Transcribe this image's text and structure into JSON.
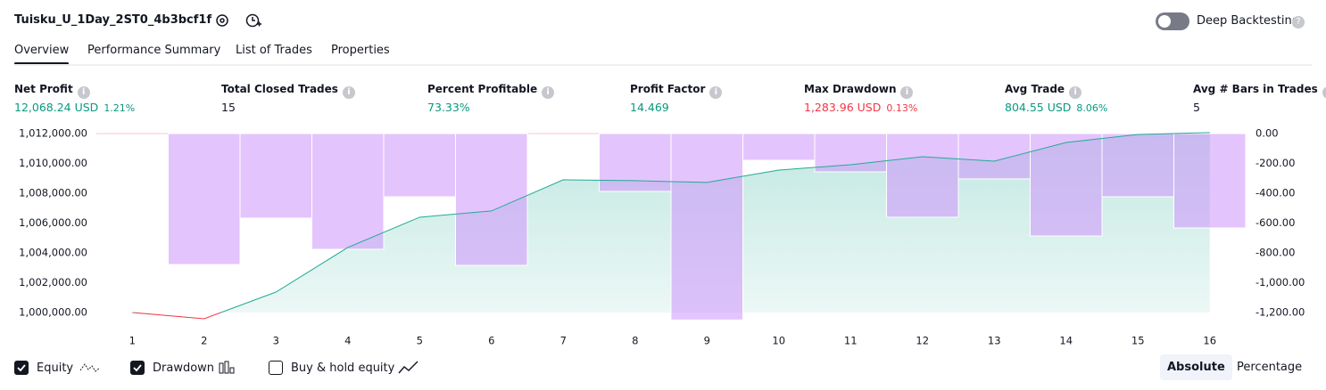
{
  "header": {
    "title": "Tuisku_U_1Day_2ST0_4b3bcf1f",
    "deep_backtesting": {
      "label": "Deep Backtesting",
      "enabled": false
    }
  },
  "tabs": {
    "items": [
      "Overview",
      "Performance Summary",
      "List of Trades",
      "Properties"
    ],
    "active": 0
  },
  "stats": [
    {
      "label": "Net Profit",
      "value": "12,068.24 USD",
      "percent": "1.21%",
      "tone": "positive"
    },
    {
      "label": "Total Closed Trades",
      "value": "15",
      "tone": "neutral"
    },
    {
      "label": "Percent Profitable",
      "value": "73.33%",
      "tone": "positive"
    },
    {
      "label": "Profit Factor",
      "value": "14.469",
      "tone": "positive"
    },
    {
      "label": "Max Drawdown",
      "value": "1,283.96 USD",
      "percent": "0.13%",
      "tone": "negative"
    },
    {
      "label": "Avg Trade",
      "value": "804.55 USD",
      "percent": "8.06%",
      "tone": "positive"
    },
    {
      "label": "Avg # Bars in Trades",
      "value": "5",
      "tone": "neutral"
    }
  ],
  "chart_data": {
    "type": "equity_drawdown",
    "x": [
      1,
      2,
      3,
      4,
      5,
      6,
      7,
      8,
      9,
      10,
      11,
      12,
      13,
      14,
      15,
      16
    ],
    "xlim": [
      0.5,
      16.5
    ],
    "xticks": [
      1,
      2,
      3,
      4,
      5,
      6,
      7,
      8,
      9,
      10,
      11,
      12,
      13,
      14,
      15,
      16
    ],
    "series": [
      {
        "name": "Equity",
        "type": "area",
        "color": "#22ab94",
        "below_color": "#f23645",
        "visible": true,
        "values": [
          1000000,
          999580,
          1001370,
          1004360,
          1006390,
          1006810,
          1008900,
          1008840,
          1008720,
          1009550,
          1009910,
          1010450,
          1010150,
          1011400,
          1011940,
          1012068.24
        ]
      },
      {
        "name": "Drawdown",
        "type": "bar",
        "axis": "y2",
        "color": "#ce93fc",
        "visible": true,
        "values": [
          0,
          -878,
          -567,
          -776,
          -424,
          -884,
          0,
          -388,
          -1250,
          -179,
          -257,
          -561,
          -304,
          -687,
          -424,
          -633
        ]
      }
    ],
    "ylim": [
      999400,
      1012000
    ],
    "yticks": [
      {
        "value": 1000000,
        "label": "1,000,000.00"
      },
      {
        "value": 1002000,
        "label": "1,002,000.00"
      },
      {
        "value": 1004000,
        "label": "1,004,000.00"
      },
      {
        "value": 1006000,
        "label": "1,006,000.00"
      },
      {
        "value": 1008000,
        "label": "1,008,000.00"
      },
      {
        "value": 1010000,
        "label": "1,010,000.00"
      },
      {
        "value": 1012000,
        "label": "1,012,000.00"
      }
    ],
    "y2lim": [
      -1260,
      0
    ],
    "y2ticks": [
      {
        "value": 0,
        "label": "0.00"
      },
      {
        "value": -200,
        "label": "-200.00"
      },
      {
        "value": -400,
        "label": "-400.00"
      },
      {
        "value": -600,
        "label": "-600.00"
      },
      {
        "value": -800,
        "label": "-800.00"
      },
      {
        "value": -1000,
        "label": "-1,000.00"
      },
      {
        "value": -1200,
        "label": "-1,200.00"
      }
    ]
  },
  "extra_toggle": {
    "label": "Buy & hold equity",
    "checked": false
  },
  "scale_mode": {
    "items": [
      "Absolute",
      "Percentage"
    ],
    "active": 0
  }
}
